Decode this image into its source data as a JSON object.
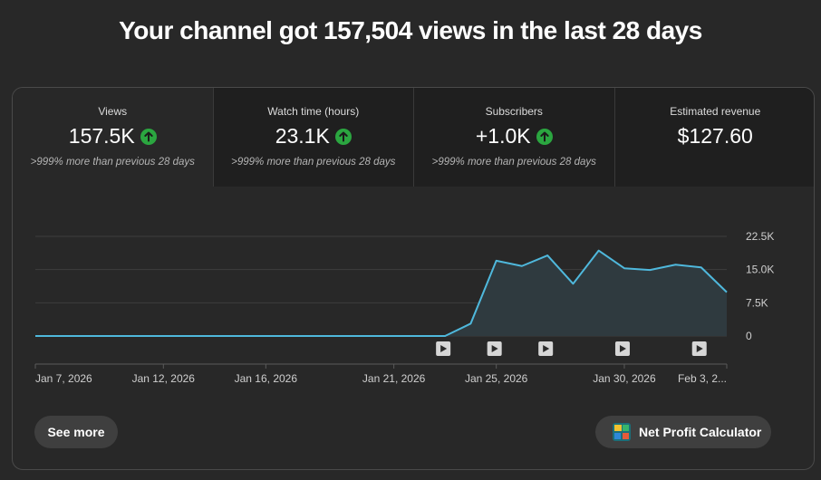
{
  "headline": "Your channel got 157,504 views in the last 28 days",
  "tiles": [
    {
      "label": "Views",
      "value": "157.5K",
      "change": ">999% more than previous 28 days",
      "trend": "up"
    },
    {
      "label": "Watch time (hours)",
      "value": "23.1K",
      "change": ">999% more than previous 28 days",
      "trend": "up"
    },
    {
      "label": "Subscribers",
      "value": "+1.0K",
      "change": ">999% more than previous 28 days",
      "trend": "up"
    },
    {
      "label": "Estimated revenue",
      "value": "$127.60"
    }
  ],
  "chart_data": {
    "type": "area",
    "series_name": "Views",
    "x": [
      "Jan 7",
      "Jan 8",
      "Jan 9",
      "Jan 10",
      "Jan 11",
      "Jan 12",
      "Jan 13",
      "Jan 14",
      "Jan 15",
      "Jan 16",
      "Jan 17",
      "Jan 18",
      "Jan 19",
      "Jan 20",
      "Jan 21",
      "Jan 22",
      "Jan 23",
      "Jan 24",
      "Jan 25",
      "Jan 26",
      "Jan 27",
      "Jan 28",
      "Jan 29",
      "Jan 30",
      "Jan 31",
      "Feb 1",
      "Feb 2",
      "Feb 3"
    ],
    "values": [
      0,
      0,
      0,
      0,
      0,
      0,
      0,
      0,
      0,
      0,
      0,
      0,
      0,
      0,
      0,
      0,
      0,
      2800,
      17000,
      15800,
      18200,
      11800,
      19300,
      15300,
      14900,
      16100,
      15500,
      9900
    ],
    "x_tick_labels": [
      "Jan 7, 2026",
      "Jan 12, 2026",
      "Jan 16, 2026",
      "Jan 21, 2026",
      "Jan 25, 2026",
      "Jan 30, 2026",
      "Feb 3, 2..."
    ],
    "x_tick_index": [
      0,
      5,
      9,
      14,
      18,
      23,
      27
    ],
    "y_ticks": [
      0,
      7500,
      15000,
      22500
    ],
    "y_tick_labels": [
      "0",
      "7.5K",
      "15.0K",
      "22.5K"
    ],
    "ylim": [
      0,
      22500
    ],
    "video_markers_index": [
      16,
      18,
      20,
      23,
      26
    ],
    "grid": true,
    "colors": {
      "line": "#4fb8dc",
      "fill": "#2f3a3f"
    }
  },
  "buttons": {
    "see_more": "See more",
    "calculator": "Net Profit Calculator"
  }
}
